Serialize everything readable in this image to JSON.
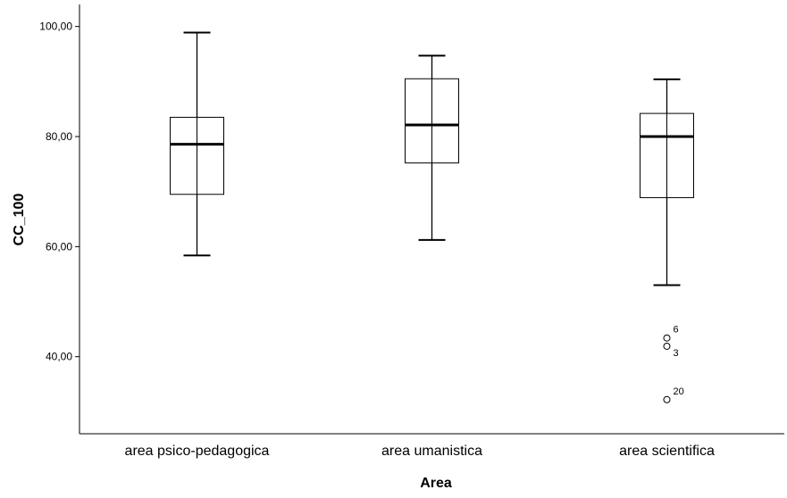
{
  "chart_data": {
    "type": "boxplot",
    "title": "",
    "xlabel": "Area",
    "ylabel": "CC_100",
    "ylim": [
      26,
      104
    ],
    "y_ticks": [
      40,
      60,
      80,
      100
    ],
    "y_tick_labels": [
      "40,00",
      "60,00",
      "80,00",
      "100,00"
    ],
    "grid": false,
    "categories": [
      "area psico-pedagogica",
      "area umanistica",
      "area scientifica"
    ],
    "boxes": [
      {
        "category": "area psico-pedagogica",
        "min": 58.4,
        "q1": 69.5,
        "median": 78.6,
        "q3": 83.5,
        "max": 98.9,
        "outliers": []
      },
      {
        "category": "area umanistica",
        "min": 61.2,
        "q1": 75.2,
        "median": 82.1,
        "q3": 90.5,
        "max": 94.7,
        "outliers": []
      },
      {
        "category": "area scientifica",
        "min": 53.0,
        "q1": 68.9,
        "median": 80.0,
        "q3": 84.2,
        "max": 90.4,
        "outliers": [
          {
            "value": 43.4,
            "label": "6"
          },
          {
            "value": 41.9,
            "label": "3"
          },
          {
            "value": 32.2,
            "label": "20"
          }
        ]
      }
    ]
  }
}
